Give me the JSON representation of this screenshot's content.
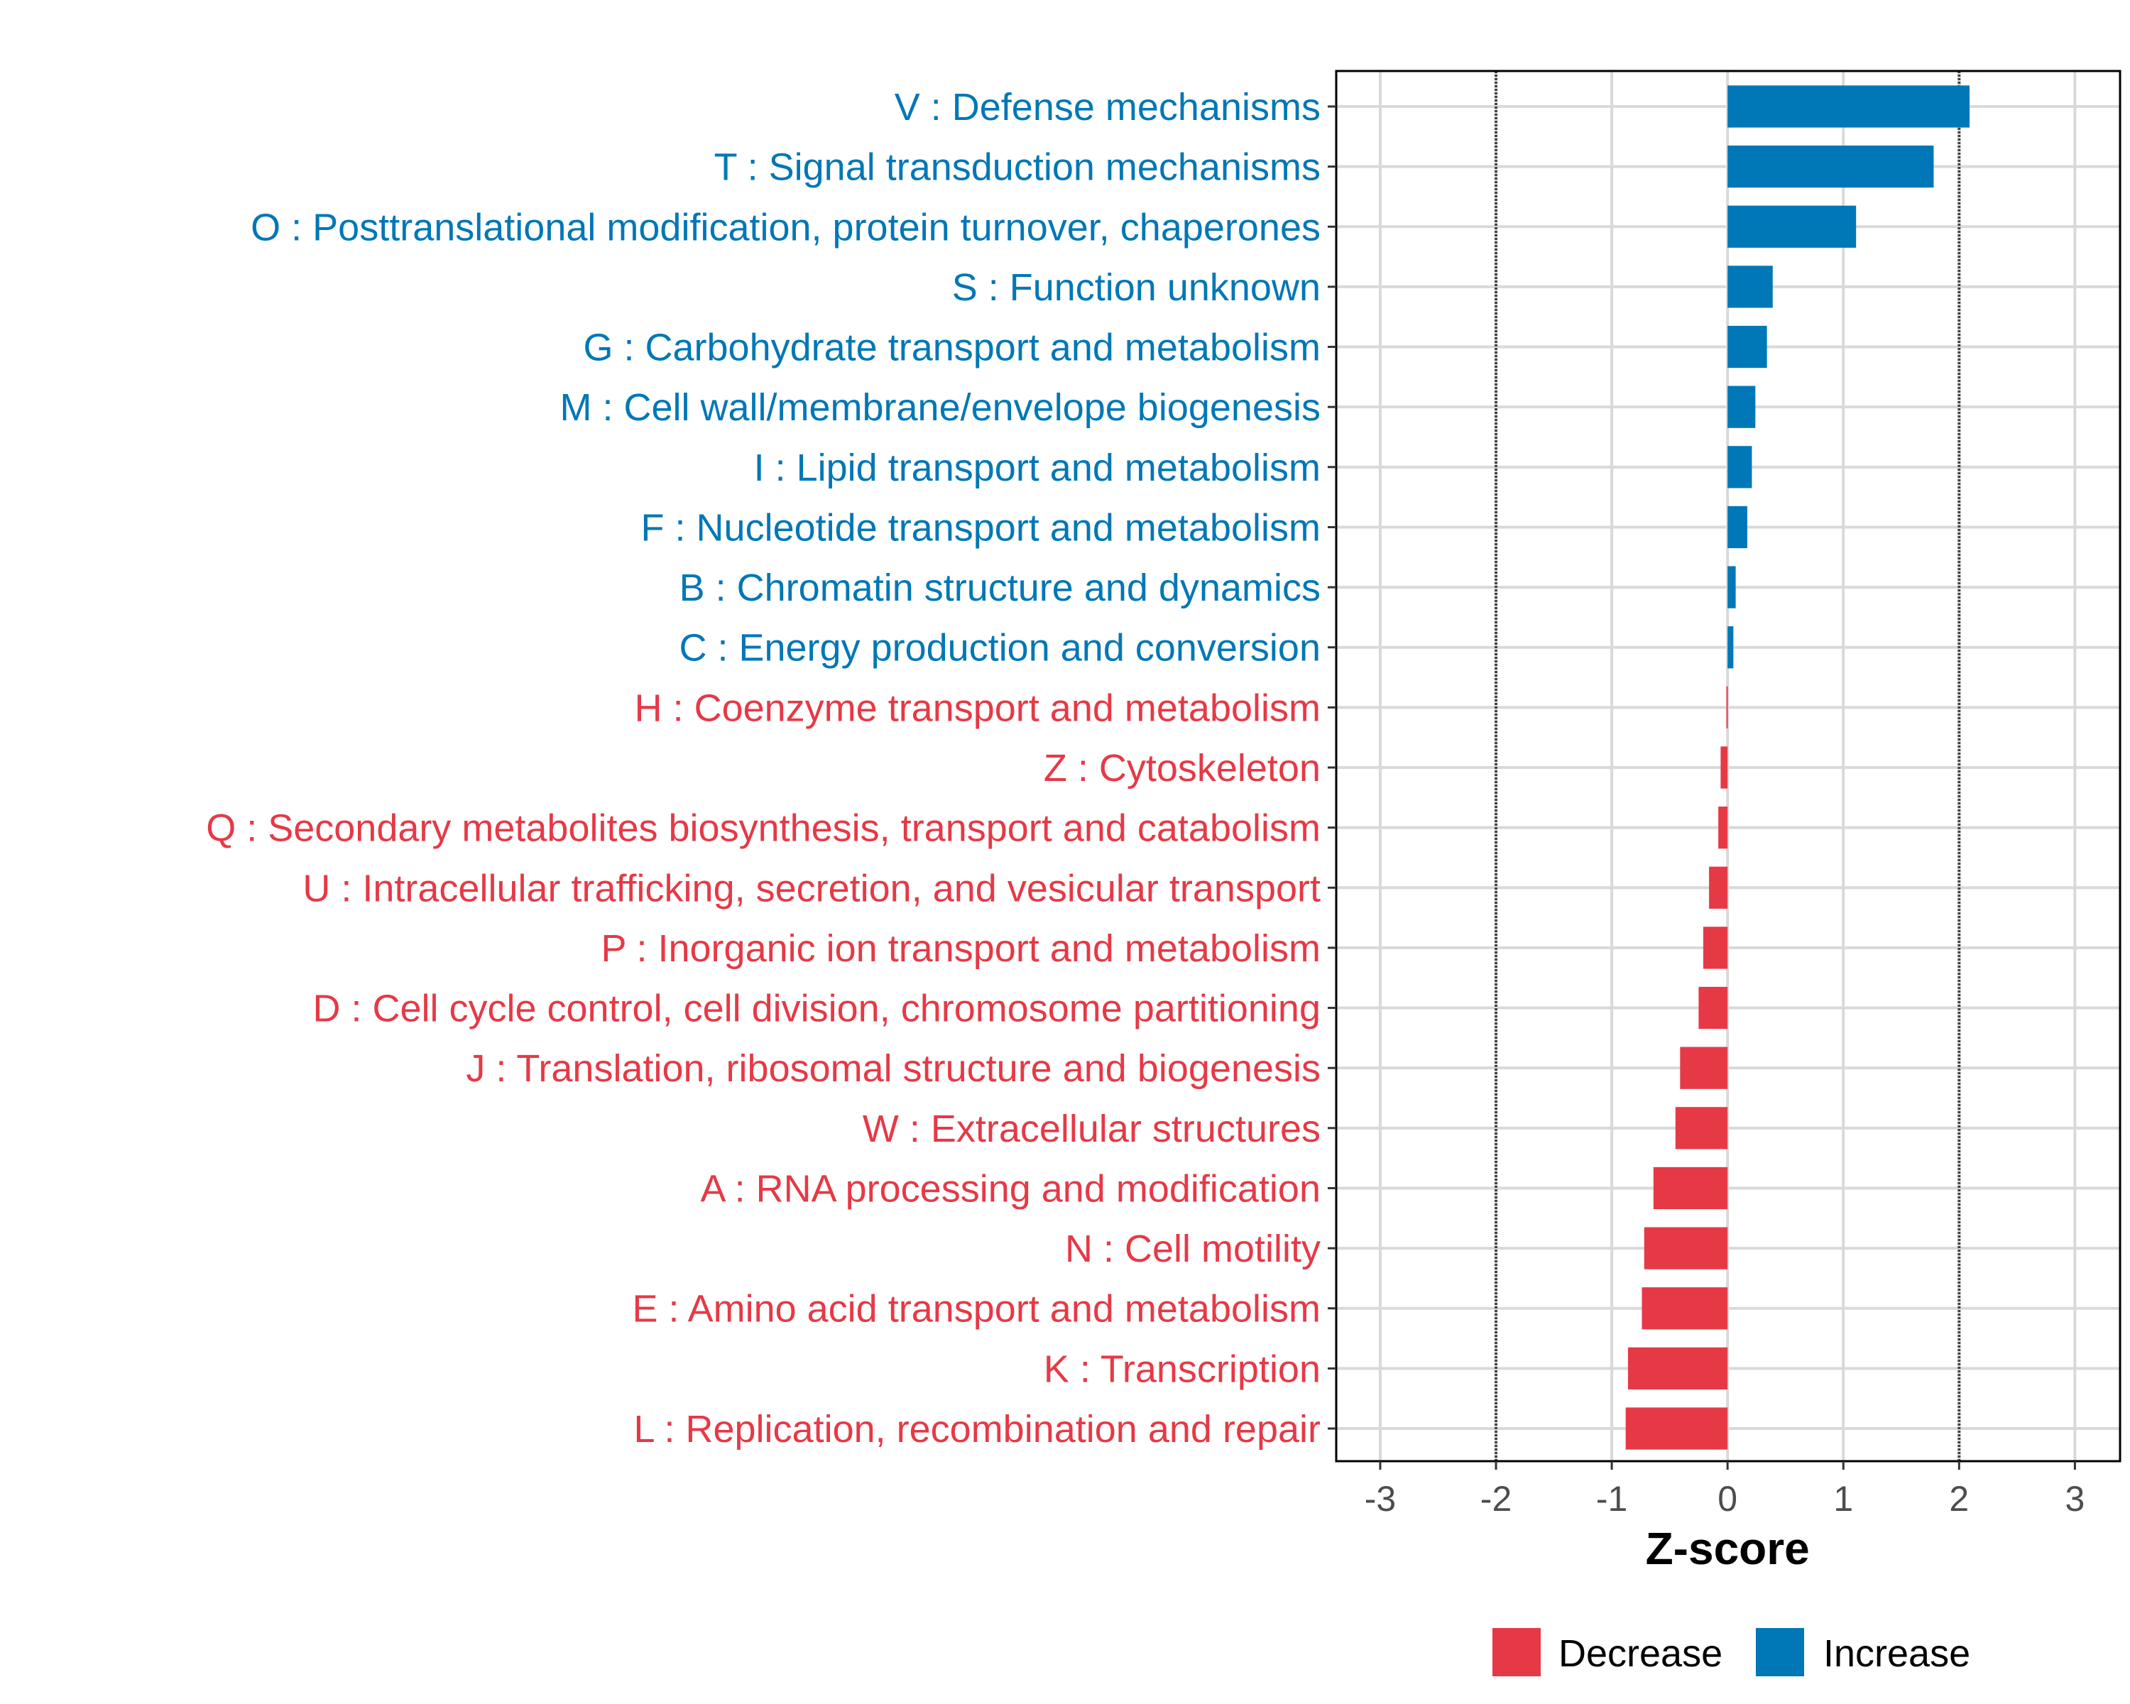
{
  "chart_data": {
    "type": "bar",
    "orientation": "horizontal",
    "title": "",
    "xlabel": "Z-score",
    "ylabel": "",
    "xlim": [
      -3.38,
      3.39
    ],
    "xticks": [
      -3,
      -2,
      -1,
      0,
      1,
      2,
      3
    ],
    "xtick_labels": [
      "-3",
      "-2",
      "-1",
      "0",
      "1",
      "2",
      "3"
    ],
    "reference_lines": [
      -2,
      2
    ],
    "grid": true,
    "legend_position": "bottom",
    "colors": {
      "Decrease": "#E63946",
      "Increase": "#0077B6"
    },
    "legend": [
      {
        "label": "Decrease",
        "color": "#E63946"
      },
      {
        "label": "Increase",
        "color": "#0077B6"
      }
    ],
    "categories": [
      "V : Defense mechanisms",
      "T : Signal transduction mechanisms",
      "O : Posttranslational modification, protein turnover, chaperones",
      "S : Function unknown",
      "G : Carbohydrate transport and metabolism",
      "M : Cell wall/membrane/envelope biogenesis",
      "I : Lipid transport and metabolism",
      "F : Nucleotide transport and metabolism",
      "B : Chromatin structure and dynamics",
      "C : Energy production and conversion",
      "H : Coenzyme transport and metabolism",
      "Z : Cytoskeleton",
      "Q : Secondary metabolites biosynthesis, transport and catabolism",
      "U : Intracellular trafficking, secretion, and vesicular transport",
      "P : Inorganic ion transport and metabolism",
      "D : Cell cycle control, cell division, chromosome partitioning",
      "J : Translation, ribosomal structure and biogenesis",
      "W : Extracellular structures",
      "A : RNA processing and modification",
      "N : Cell motility",
      "E : Amino acid transport and metabolism",
      "K : Transcription",
      "L : Replication, recombination and repair"
    ],
    "values": [
      2.09,
      1.78,
      1.11,
      0.39,
      0.34,
      0.24,
      0.21,
      0.17,
      0.07,
      0.05,
      -0.01,
      -0.06,
      -0.08,
      -0.16,
      -0.21,
      -0.25,
      -0.41,
      -0.45,
      -0.64,
      -0.72,
      -0.74,
      -0.86,
      -0.88
    ],
    "groups": [
      "Increase",
      "Increase",
      "Increase",
      "Increase",
      "Increase",
      "Increase",
      "Increase",
      "Increase",
      "Increase",
      "Increase",
      "Decrease",
      "Decrease",
      "Decrease",
      "Decrease",
      "Decrease",
      "Decrease",
      "Decrease",
      "Decrease",
      "Decrease",
      "Decrease",
      "Decrease",
      "Decrease",
      "Decrease"
    ]
  }
}
